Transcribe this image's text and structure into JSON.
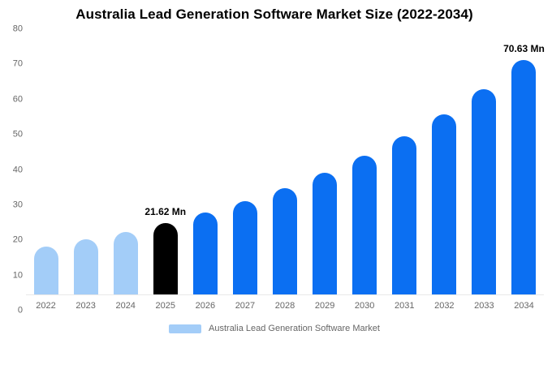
{
  "chart_data": {
    "type": "bar",
    "title": "Australia Lead Generation Software Market Size (2022-2034)",
    "xlabel": "",
    "ylabel": "",
    "ylim": [
      0,
      80
    ],
    "yticks": [
      80,
      70,
      60,
      50,
      40,
      30,
      20,
      10,
      0
    ],
    "grid": false,
    "legend_position": "bottom",
    "unit": "Mn",
    "categories": [
      "2022",
      "2023",
      "2024",
      "2025",
      "2026",
      "2027",
      "2028",
      "2029",
      "2030",
      "2031",
      "2032",
      "2033",
      "2034"
    ],
    "values": [
      14.56,
      16.61,
      18.95,
      21.62,
      24.66,
      28.13,
      32.08,
      36.6,
      41.74,
      47.61,
      54.3,
      61.93,
      70.63
    ],
    "data_labels": [
      "",
      "",
      "",
      "21.62 Mn",
      "",
      "",
      "",
      "",
      "",
      "",
      "",
      "",
      "70.63 Mn"
    ],
    "bar_colors": [
      "#a3cdf8",
      "#a3cdf8",
      "#a3cdf8",
      "#000000",
      "#0b6ff2",
      "#0b6ff2",
      "#0b6ff2",
      "#0b6ff2",
      "#0b6ff2",
      "#0b6ff2",
      "#0b6ff2",
      "#0b6ff2",
      "#0b6ff2"
    ],
    "colors": {
      "historical": "#a3cdf8",
      "highlight": "#000000",
      "forecast": "#0b6ff2"
    }
  },
  "legend": {
    "label": "Australia Lead Generation Software Market",
    "swatch_color": "#a3cdf8"
  }
}
